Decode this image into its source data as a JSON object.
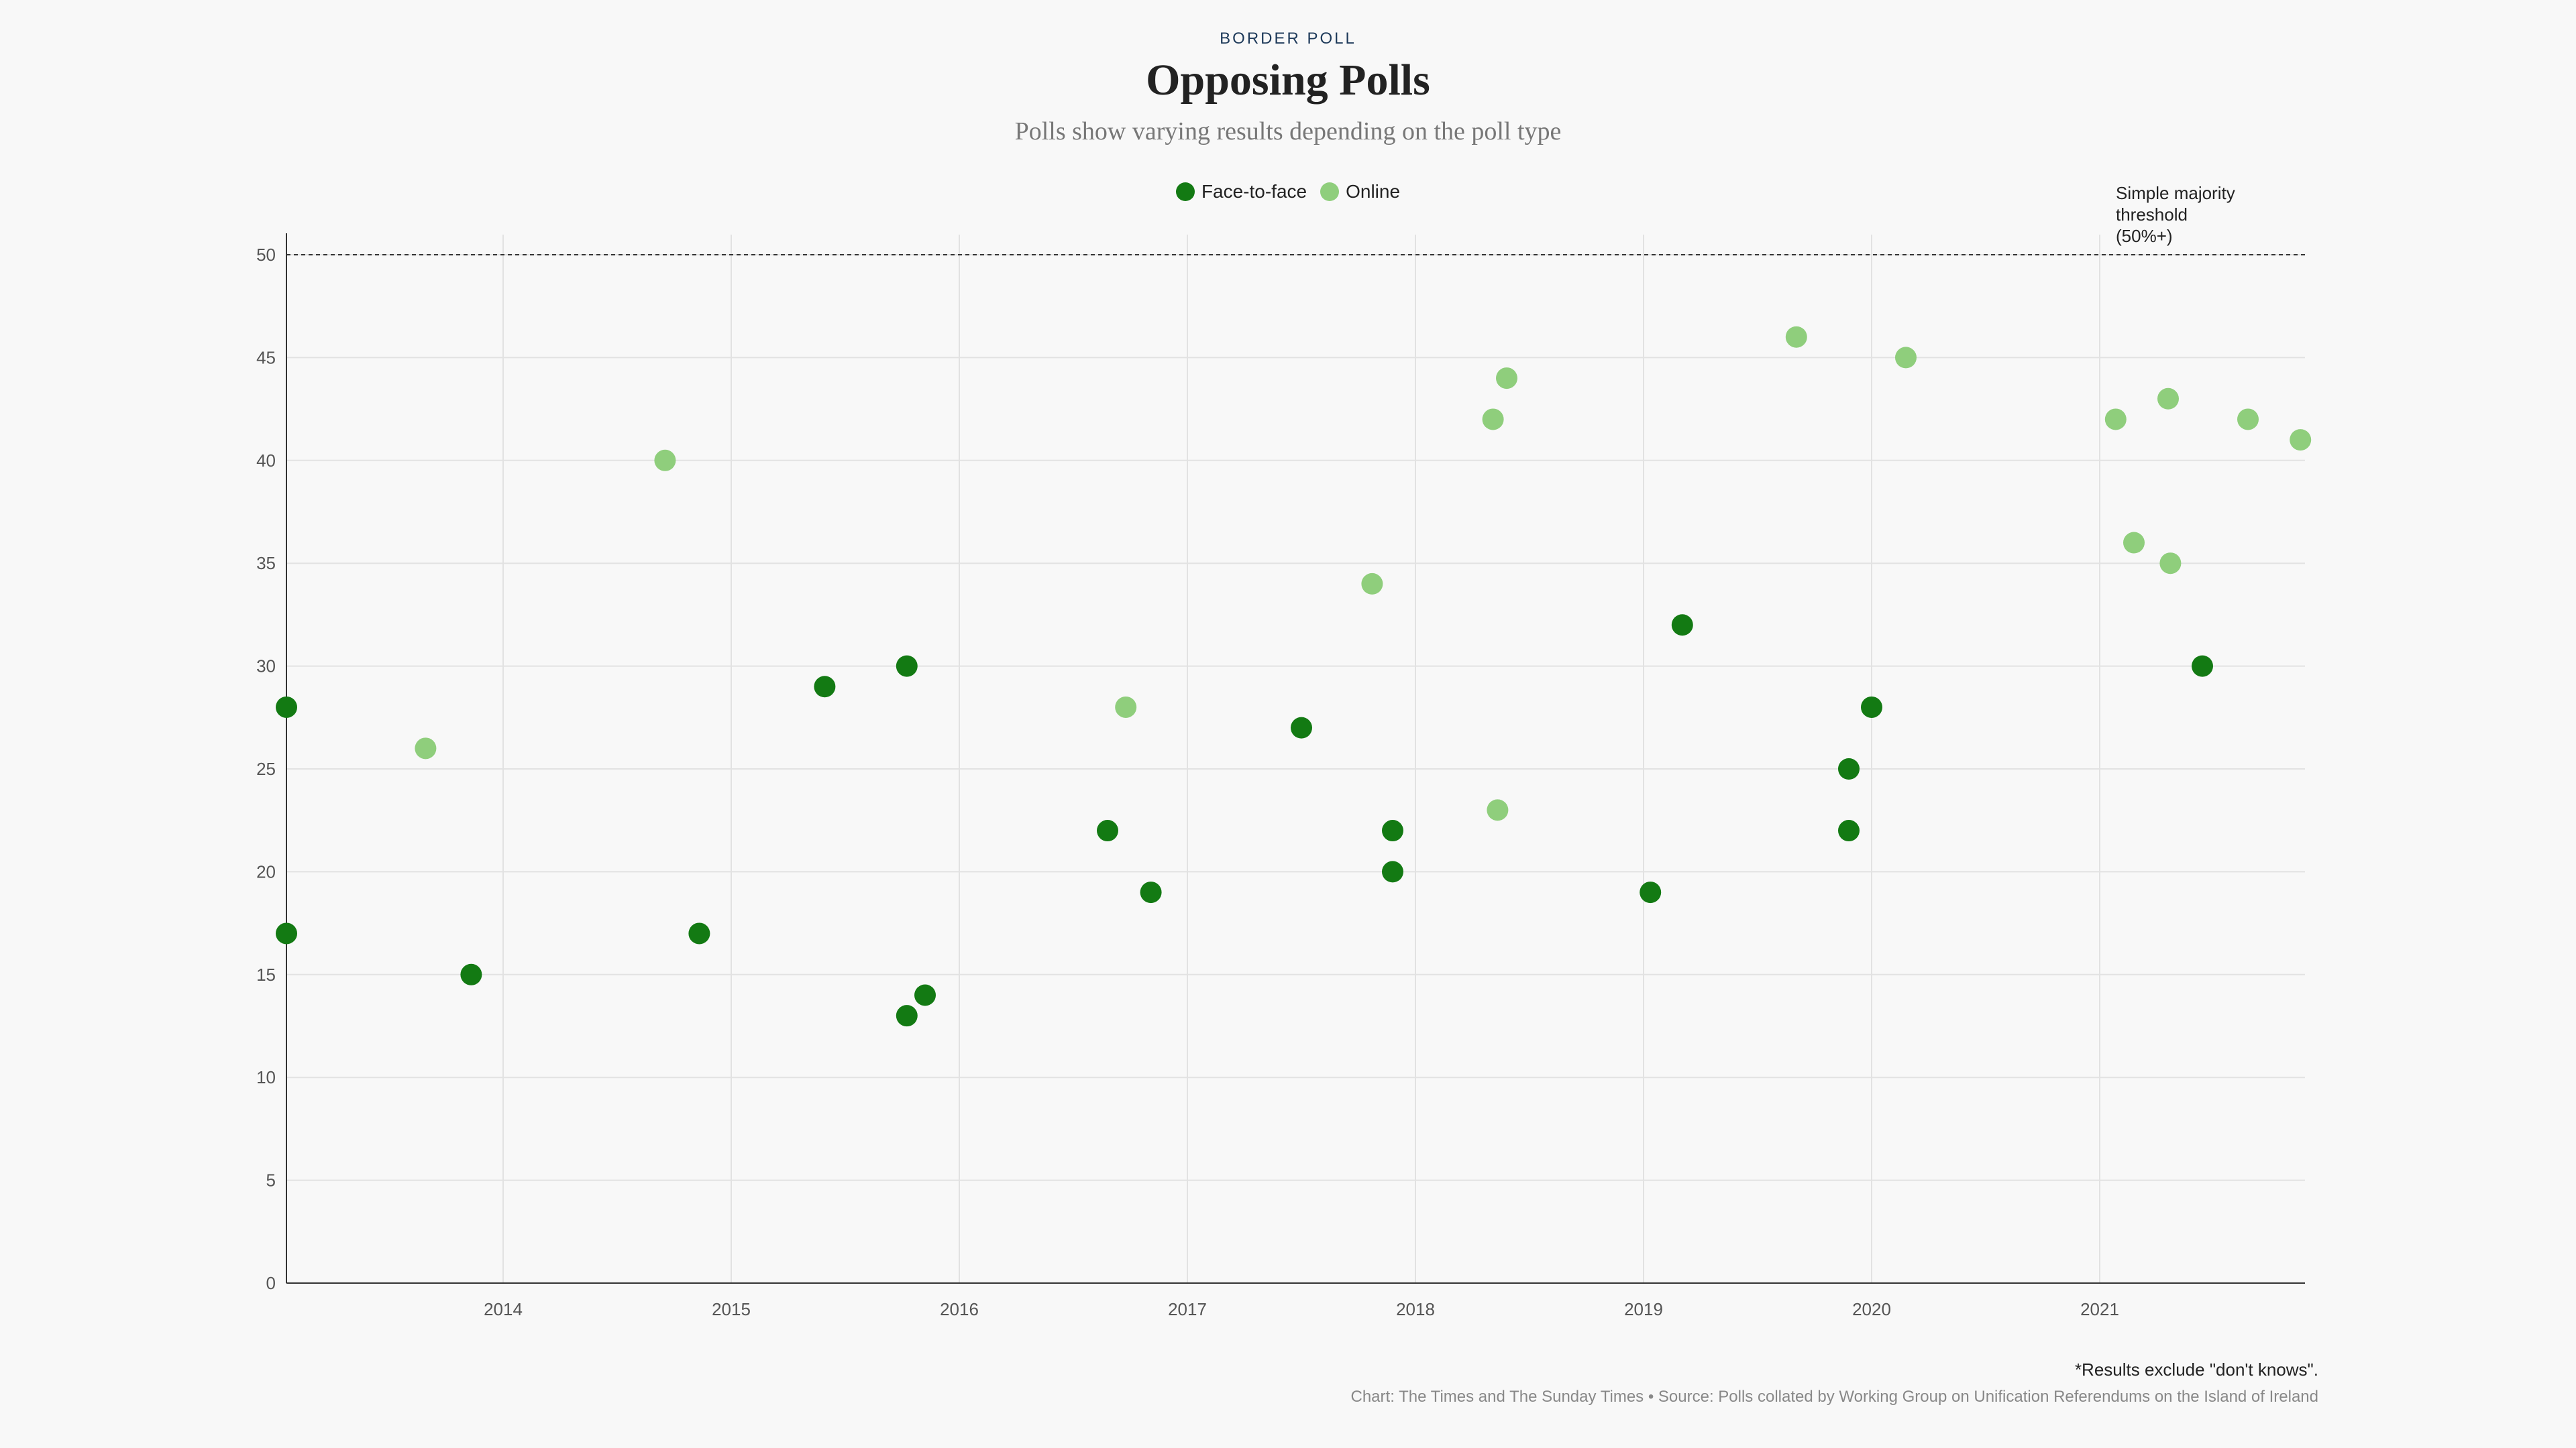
{
  "header": {
    "kicker": "BORDER POLL",
    "title": "Opposing Polls",
    "subtitle": "Polls show varying results depending on the poll type"
  },
  "legend": [
    {
      "label": "Face-to-face",
      "color": "#137a13"
    },
    {
      "label": "Online",
      "color": "#8fce7c"
    }
  ],
  "threshold_note": {
    "line1": "Simple majority",
    "line2": "threshold",
    "line3": "(50%+)"
  },
  "footer": {
    "footnote": "*Results exclude \"don't knows\".",
    "credit": "Chart: The Times and The Sunday Times • Source: Polls collated by Working Group on Unification Referendums on the Island of Ireland"
  },
  "chart_data": {
    "type": "scatter",
    "title": "Opposing Polls",
    "subtitle": "Polls show varying results depending on the poll type",
    "xlabel": "",
    "ylabel": "",
    "xlim": [
      2013.05,
      2021.9
    ],
    "ylim": [
      0,
      50
    ],
    "x_ticks": [
      "2014",
      "2015",
      "2016",
      "2017",
      "2018",
      "2019",
      "2020",
      "2021"
    ],
    "y_ticks": [
      "0",
      "5",
      "10",
      "15",
      "20",
      "25",
      "30",
      "35",
      "40",
      "45",
      "50"
    ],
    "grid": true,
    "legend_position": "top-center",
    "reference_line": {
      "y": 50,
      "label": "Simple majority threshold (50%+)",
      "style": "dashed"
    },
    "series": [
      {
        "name": "Face-to-face",
        "color": "#137a13",
        "points": [
          {
            "x": 2013.05,
            "y": 28
          },
          {
            "x": 2013.05,
            "y": 17
          },
          {
            "x": 2013.86,
            "y": 15
          },
          {
            "x": 2014.86,
            "y": 17
          },
          {
            "x": 2015.41,
            "y": 29
          },
          {
            "x": 2015.77,
            "y": 30
          },
          {
            "x": 2015.77,
            "y": 13
          },
          {
            "x": 2015.85,
            "y": 14
          },
          {
            "x": 2016.65,
            "y": 22
          },
          {
            "x": 2016.84,
            "y": 19
          },
          {
            "x": 2017.5,
            "y": 27
          },
          {
            "x": 2017.9,
            "y": 22
          },
          {
            "x": 2017.9,
            "y": 20
          },
          {
            "x": 2019.03,
            "y": 19
          },
          {
            "x": 2019.17,
            "y": 32
          },
          {
            "x": 2019.9,
            "y": 25
          },
          {
            "x": 2019.9,
            "y": 22
          },
          {
            "x": 2020.0,
            "y": 28
          },
          {
            "x": 2021.45,
            "y": 30
          }
        ]
      },
      {
        "name": "Online",
        "color": "#8fce7c",
        "points": [
          {
            "x": 2013.66,
            "y": 26
          },
          {
            "x": 2014.71,
            "y": 40
          },
          {
            "x": 2016.73,
            "y": 28
          },
          {
            "x": 2017.81,
            "y": 34
          },
          {
            "x": 2018.34,
            "y": 42
          },
          {
            "x": 2018.4,
            "y": 44
          },
          {
            "x": 2018.36,
            "y": 23
          },
          {
            "x": 2019.67,
            "y": 46
          },
          {
            "x": 2020.15,
            "y": 45
          },
          {
            "x": 2021.07,
            "y": 42
          },
          {
            "x": 2021.15,
            "y": 36
          },
          {
            "x": 2021.3,
            "y": 43
          },
          {
            "x": 2021.31,
            "y": 35
          },
          {
            "x": 2021.65,
            "y": 42
          },
          {
            "x": 2021.88,
            "y": 41
          }
        ]
      }
    ]
  }
}
